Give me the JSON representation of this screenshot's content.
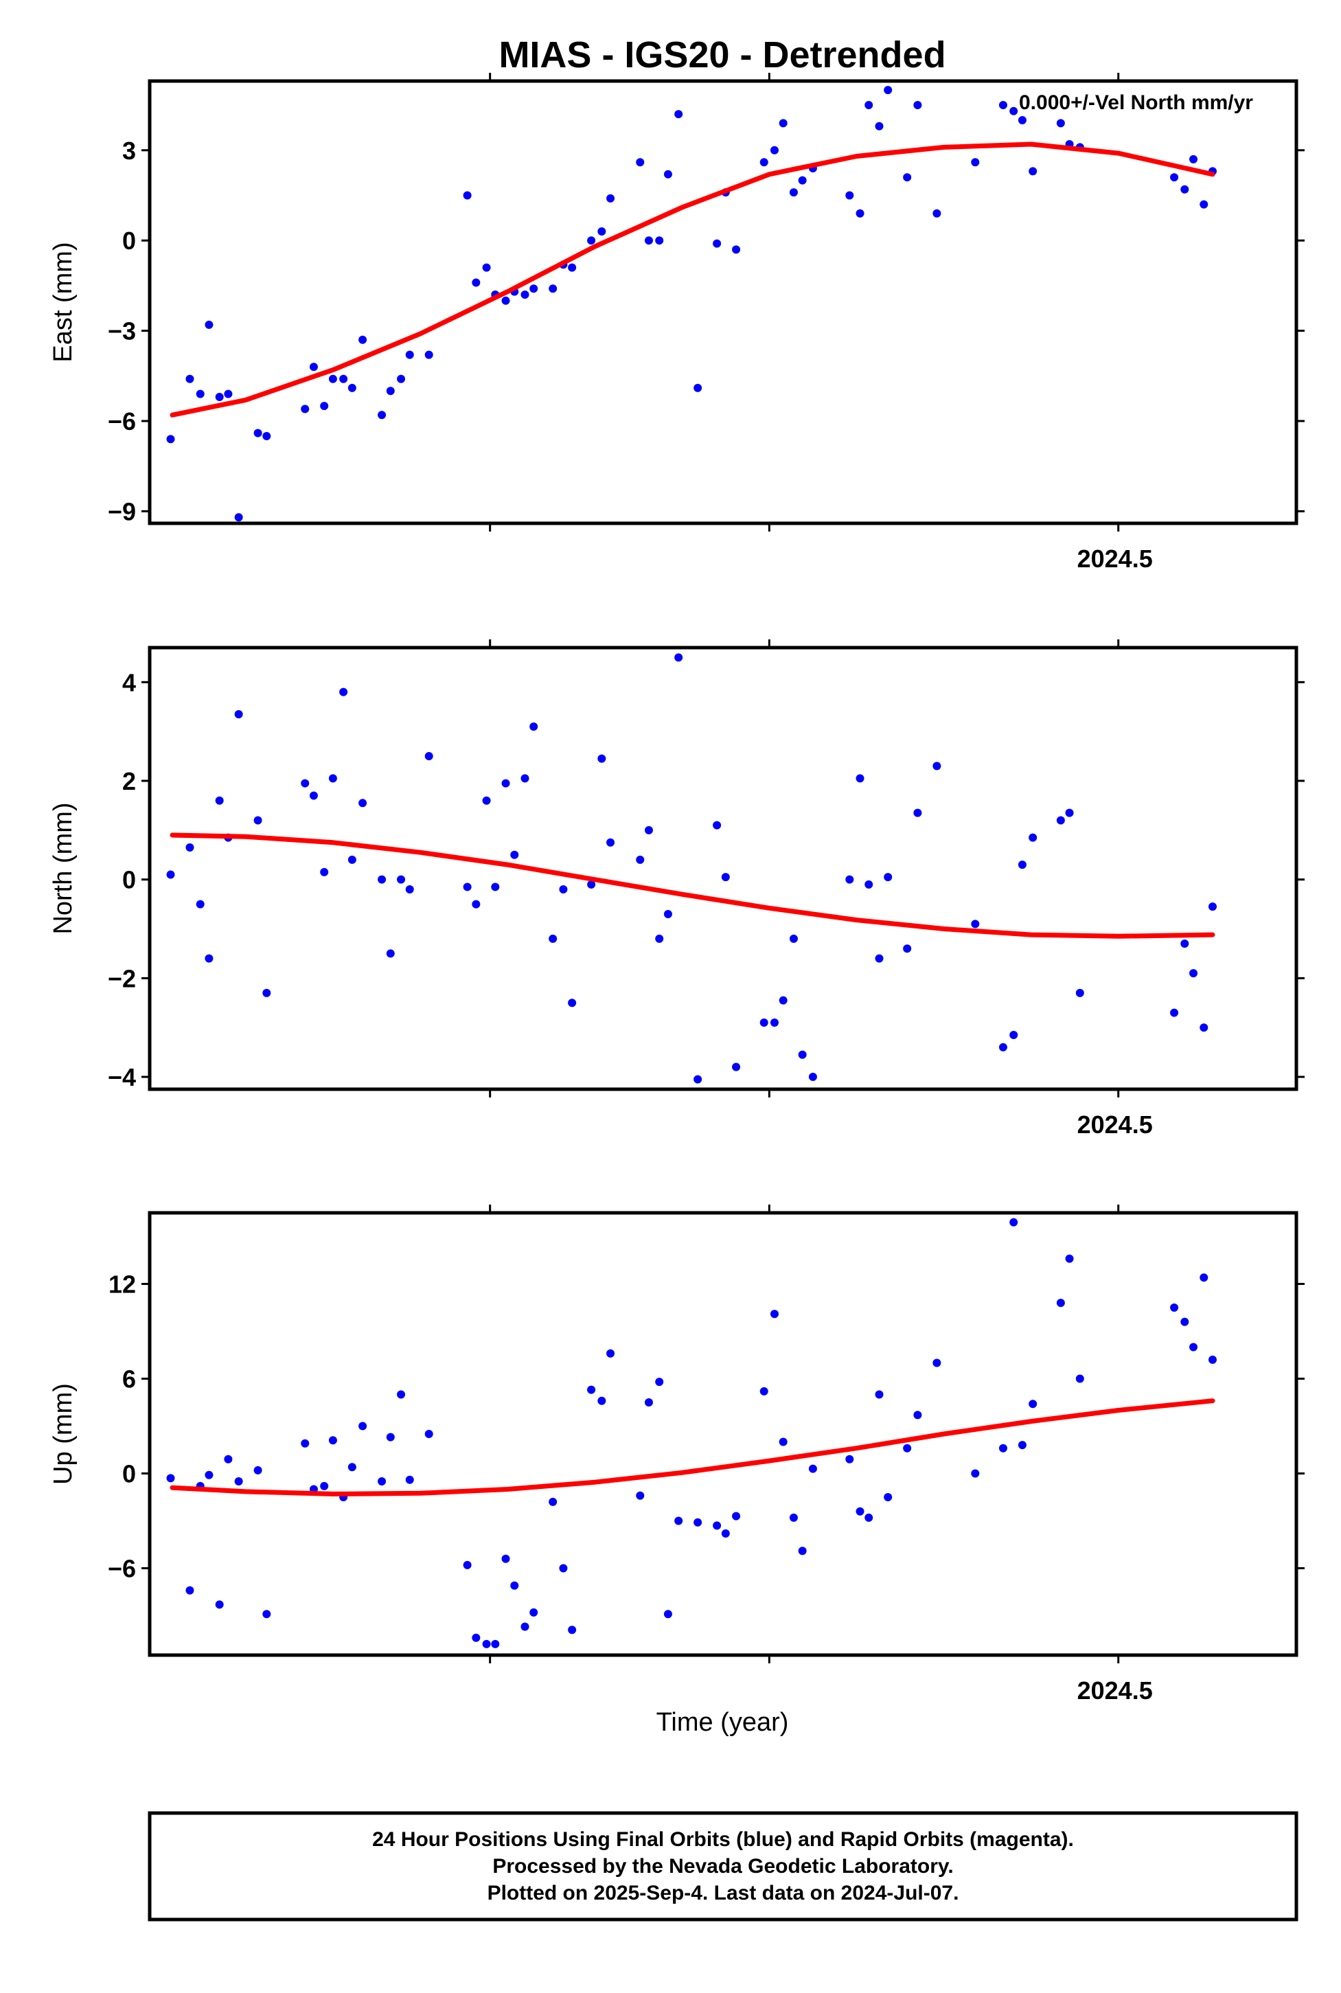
{
  "title": "MIAS - IGS20 - Detrended",
  "annotation": "0.000+/-Vel North mm/yr",
  "xlabel": "Time (year)",
  "footer": [
    "24 Hour Positions Using Final Orbits (blue) and Rapid Orbits (magenta).",
    "Processed by the Nevada Geodetic Laboratory.",
    "Plotted on 2025-Sep-4. Last data on 2024-Jul-07."
  ],
  "colors": {
    "points": "#0000ff",
    "fit": "#ff0000",
    "frame": "#000000"
  },
  "chart_data": [
    {
      "type": "scatter",
      "name": "east",
      "ylabel": "East (mm)",
      "xlim": [
        2023.945,
        2024.602
      ],
      "ylim": [
        -9.4,
        5.3
      ],
      "yticks": [
        -9,
        -6,
        -3,
        0,
        3
      ],
      "ytick_labels": [
        "−9",
        "−6",
        "−3",
        "0",
        "3"
      ],
      "xticks": [
        2024.14,
        2024.3,
        2024.5
      ],
      "xtick_labels": [
        "",
        "",
        "2024.5"
      ],
      "points": [
        [
          2023.957,
          -6.6
        ],
        [
          2023.968,
          -4.6
        ],
        [
          2023.974,
          -5.1
        ],
        [
          2023.979,
          -2.8
        ],
        [
          2023.985,
          -5.2
        ],
        [
          2023.99,
          -5.1
        ],
        [
          2023.996,
          -9.2
        ],
        [
          2024.007,
          -6.4
        ],
        [
          2024.012,
          -6.5
        ],
        [
          2024.034,
          -5.6
        ],
        [
          2024.039,
          -4.2
        ],
        [
          2024.045,
          -5.5
        ],
        [
          2024.05,
          -4.6
        ],
        [
          2024.056,
          -4.6
        ],
        [
          2024.061,
          -4.9
        ],
        [
          2024.067,
          -3.3
        ],
        [
          2024.078,
          -5.8
        ],
        [
          2024.083,
          -5.0
        ],
        [
          2024.089,
          -4.6
        ],
        [
          2024.094,
          -3.8
        ],
        [
          2024.105,
          -3.8
        ],
        [
          2024.127,
          1.5
        ],
        [
          2024.132,
          -1.4
        ],
        [
          2024.138,
          -0.9
        ],
        [
          2024.143,
          -1.8
        ],
        [
          2024.149,
          -2.0
        ],
        [
          2024.154,
          -1.7
        ],
        [
          2024.16,
          -1.8
        ],
        [
          2024.165,
          -1.6
        ],
        [
          2024.176,
          -1.6
        ],
        [
          2024.182,
          -0.8
        ],
        [
          2024.187,
          -0.9
        ],
        [
          2024.198,
          0.0
        ],
        [
          2024.204,
          0.3
        ],
        [
          2024.209,
          1.4
        ],
        [
          2024.226,
          2.6
        ],
        [
          2024.231,
          0.0
        ],
        [
          2024.237,
          0.0
        ],
        [
          2024.242,
          2.2
        ],
        [
          2024.248,
          4.2
        ],
        [
          2024.259,
          -4.9
        ],
        [
          2024.27,
          -0.1
        ],
        [
          2024.275,
          1.6
        ],
        [
          2024.281,
          -0.3
        ],
        [
          2024.297,
          2.6
        ],
        [
          2024.303,
          3.0
        ],
        [
          2024.308,
          3.9
        ],
        [
          2024.314,
          1.6
        ],
        [
          2024.319,
          2.0
        ],
        [
          2024.325,
          2.4
        ],
        [
          2024.346,
          1.5
        ],
        [
          2024.352,
          0.9
        ],
        [
          2024.357,
          4.5
        ],
        [
          2024.363,
          3.8
        ],
        [
          2024.368,
          5.0
        ],
        [
          2024.379,
          2.1
        ],
        [
          2024.385,
          4.5
        ],
        [
          2024.396,
          0.9
        ],
        [
          2024.418,
          2.6
        ],
        [
          2024.434,
          4.5
        ],
        [
          2024.44,
          4.3
        ],
        [
          2024.445,
          4.0
        ],
        [
          2024.451,
          2.3
        ],
        [
          2024.467,
          3.9
        ],
        [
          2024.472,
          3.2
        ],
        [
          2024.478,
          3.1
        ],
        [
          2024.532,
          2.1
        ],
        [
          2024.538,
          1.7
        ],
        [
          2024.543,
          2.7
        ],
        [
          2024.549,
          1.2
        ],
        [
          2024.554,
          2.3
        ]
      ],
      "fit": [
        [
          2023.958,
          -5.8
        ],
        [
          2024.0,
          -5.3
        ],
        [
          2024.05,
          -4.3
        ],
        [
          2024.1,
          -3.1
        ],
        [
          2024.15,
          -1.7
        ],
        [
          2024.2,
          -0.2
        ],
        [
          2024.25,
          1.1
        ],
        [
          2024.3,
          2.2
        ],
        [
          2024.35,
          2.8
        ],
        [
          2024.4,
          3.1
        ],
        [
          2024.45,
          3.2
        ],
        [
          2024.5,
          2.9
        ],
        [
          2024.554,
          2.2
        ]
      ]
    },
    {
      "type": "scatter",
      "name": "north",
      "ylabel": "North (mm)",
      "xlim": [
        2023.945,
        2024.602
      ],
      "ylim": [
        -4.25,
        4.7
      ],
      "yticks": [
        -4,
        -2,
        0,
        2,
        4
      ],
      "ytick_labels": [
        "−4",
        "−2",
        "0",
        "2",
        "4"
      ],
      "xticks": [
        2024.14,
        2024.3,
        2024.5
      ],
      "xtick_labels": [
        "",
        "",
        "2024.5"
      ],
      "points": [
        [
          2023.957,
          0.1
        ],
        [
          2023.968,
          0.65
        ],
        [
          2023.974,
          -0.5
        ],
        [
          2023.979,
          -1.6
        ],
        [
          2023.985,
          1.6
        ],
        [
          2023.99,
          0.85
        ],
        [
          2023.996,
          3.35
        ],
        [
          2024.007,
          1.2
        ],
        [
          2024.012,
          -2.3
        ],
        [
          2024.034,
          1.95
        ],
        [
          2024.039,
          1.7
        ],
        [
          2024.045,
          0.15
        ],
        [
          2024.05,
          2.05
        ],
        [
          2024.056,
          3.8
        ],
        [
          2024.061,
          0.4
        ],
        [
          2024.067,
          1.55
        ],
        [
          2024.078,
          0.0
        ],
        [
          2024.083,
          -1.5
        ],
        [
          2024.089,
          0.0
        ],
        [
          2024.094,
          -0.2
        ],
        [
          2024.105,
          2.5
        ],
        [
          2024.127,
          -0.15
        ],
        [
          2024.132,
          -0.5
        ],
        [
          2024.138,
          1.6
        ],
        [
          2024.143,
          -0.15
        ],
        [
          2024.149,
          1.95
        ],
        [
          2024.154,
          0.5
        ],
        [
          2024.16,
          2.05
        ],
        [
          2024.165,
          3.1
        ],
        [
          2024.176,
          -1.2
        ],
        [
          2024.182,
          -0.2
        ],
        [
          2024.187,
          -2.5
        ],
        [
          2024.198,
          -0.1
        ],
        [
          2024.204,
          2.45
        ],
        [
          2024.209,
          0.75
        ],
        [
          2024.226,
          0.4
        ],
        [
          2024.231,
          1.0
        ],
        [
          2024.237,
          -1.2
        ],
        [
          2024.242,
          -0.7
        ],
        [
          2024.248,
          4.5
        ],
        [
          2024.259,
          -4.05
        ],
        [
          2024.27,
          1.1
        ],
        [
          2024.275,
          0.05
        ],
        [
          2024.281,
          -3.8
        ],
        [
          2024.297,
          -2.9
        ],
        [
          2024.303,
          -2.9
        ],
        [
          2024.308,
          -2.45
        ],
        [
          2024.314,
          -1.2
        ],
        [
          2024.319,
          -3.55
        ],
        [
          2024.325,
          -4.0
        ],
        [
          2024.346,
          0.0
        ],
        [
          2024.352,
          2.05
        ],
        [
          2024.357,
          -0.1
        ],
        [
          2024.363,
          -1.6
        ],
        [
          2024.368,
          0.05
        ],
        [
          2024.379,
          -1.4
        ],
        [
          2024.385,
          1.35
        ],
        [
          2024.396,
          2.3
        ],
        [
          2024.418,
          -0.9
        ],
        [
          2024.434,
          -3.4
        ],
        [
          2024.44,
          -3.15
        ],
        [
          2024.445,
          0.3
        ],
        [
          2024.451,
          0.85
        ],
        [
          2024.467,
          1.2
        ],
        [
          2024.472,
          1.35
        ],
        [
          2024.478,
          -2.3
        ],
        [
          2024.532,
          -2.7
        ],
        [
          2024.538,
          -1.3
        ],
        [
          2024.543,
          -1.9
        ],
        [
          2024.549,
          -3.0
        ],
        [
          2024.554,
          -0.55
        ]
      ],
      "fit": [
        [
          2023.958,
          0.9
        ],
        [
          2024.0,
          0.87
        ],
        [
          2024.05,
          0.75
        ],
        [
          2024.1,
          0.55
        ],
        [
          2024.15,
          0.3
        ],
        [
          2024.2,
          0.0
        ],
        [
          2024.25,
          -0.3
        ],
        [
          2024.3,
          -0.58
        ],
        [
          2024.35,
          -0.82
        ],
        [
          2024.4,
          -1.0
        ],
        [
          2024.45,
          -1.12
        ],
        [
          2024.5,
          -1.15
        ],
        [
          2024.554,
          -1.12
        ]
      ]
    },
    {
      "type": "scatter",
      "name": "up",
      "ylabel": "Up (mm)",
      "xlim": [
        2023.945,
        2024.602
      ],
      "ylim": [
        -11.5,
        16.5
      ],
      "yticks": [
        -6,
        0,
        6,
        12
      ],
      "ytick_labels": [
        "−6",
        "0",
        "6",
        "12"
      ],
      "xticks": [
        2024.14,
        2024.3,
        2024.5
      ],
      "xtick_labels": [
        "",
        "",
        "2024.5"
      ],
      "points": [
        [
          2023.957,
          -0.3
        ],
        [
          2023.968,
          -7.4
        ],
        [
          2023.974,
          -0.8
        ],
        [
          2023.979,
          -0.1
        ],
        [
          2023.985,
          -8.3
        ],
        [
          2023.99,
          0.9
        ],
        [
          2023.996,
          -0.5
        ],
        [
          2024.007,
          0.2
        ],
        [
          2024.012,
          -8.9
        ],
        [
          2024.034,
          1.9
        ],
        [
          2024.039,
          -1.0
        ],
        [
          2024.045,
          -0.8
        ],
        [
          2024.05,
          2.1
        ],
        [
          2024.056,
          -1.5
        ],
        [
          2024.061,
          0.4
        ],
        [
          2024.067,
          3.0
        ],
        [
          2024.078,
          -0.5
        ],
        [
          2024.083,
          2.3
        ],
        [
          2024.089,
          5.0
        ],
        [
          2024.094,
          -0.4
        ],
        [
          2024.105,
          2.5
        ],
        [
          2024.127,
          -5.8
        ],
        [
          2024.132,
          -10.4
        ],
        [
          2024.138,
          -10.8
        ],
        [
          2024.143,
          -10.8
        ],
        [
          2024.149,
          -5.4
        ],
        [
          2024.154,
          -7.1
        ],
        [
          2024.16,
          -9.7
        ],
        [
          2024.165,
          -8.8
        ],
        [
          2024.176,
          -1.8
        ],
        [
          2024.182,
          -6.0
        ],
        [
          2024.187,
          -9.9
        ],
        [
          2024.198,
          5.3
        ],
        [
          2024.204,
          4.6
        ],
        [
          2024.209,
          7.6
        ],
        [
          2024.226,
          -1.4
        ],
        [
          2024.231,
          4.5
        ],
        [
          2024.237,
          5.8
        ],
        [
          2024.242,
          -8.9
        ],
        [
          2024.248,
          -3.0
        ],
        [
          2024.259,
          -3.1
        ],
        [
          2024.27,
          -3.3
        ],
        [
          2024.275,
          -3.8
        ],
        [
          2024.281,
          -2.7
        ],
        [
          2024.297,
          5.2
        ],
        [
          2024.303,
          10.1
        ],
        [
          2024.308,
          2.0
        ],
        [
          2024.314,
          -2.8
        ],
        [
          2024.319,
          -4.9
        ],
        [
          2024.325,
          0.3
        ],
        [
          2024.346,
          0.9
        ],
        [
          2024.352,
          -2.4
        ],
        [
          2024.357,
          -2.8
        ],
        [
          2024.363,
          5.0
        ],
        [
          2024.368,
          -1.5
        ],
        [
          2024.379,
          1.6
        ],
        [
          2024.385,
          3.7
        ],
        [
          2024.396,
          7.0
        ],
        [
          2024.418,
          0.0
        ],
        [
          2024.434,
          1.6
        ],
        [
          2024.44,
          15.9
        ],
        [
          2024.445,
          1.8
        ],
        [
          2024.451,
          4.4
        ],
        [
          2024.467,
          10.8
        ],
        [
          2024.472,
          13.6
        ],
        [
          2024.478,
          6.0
        ],
        [
          2024.532,
          10.5
        ],
        [
          2024.538,
          9.6
        ],
        [
          2024.543,
          8.0
        ],
        [
          2024.549,
          12.4
        ],
        [
          2024.554,
          7.2
        ]
      ],
      "fit": [
        [
          2023.958,
          -0.9
        ],
        [
          2024.0,
          -1.15
        ],
        [
          2024.05,
          -1.3
        ],
        [
          2024.1,
          -1.25
        ],
        [
          2024.15,
          -1.0
        ],
        [
          2024.2,
          -0.55
        ],
        [
          2024.25,
          0.05
        ],
        [
          2024.3,
          0.8
        ],
        [
          2024.35,
          1.6
        ],
        [
          2024.4,
          2.5
        ],
        [
          2024.45,
          3.3
        ],
        [
          2024.5,
          4.0
        ],
        [
          2024.554,
          4.6
        ]
      ]
    }
  ]
}
